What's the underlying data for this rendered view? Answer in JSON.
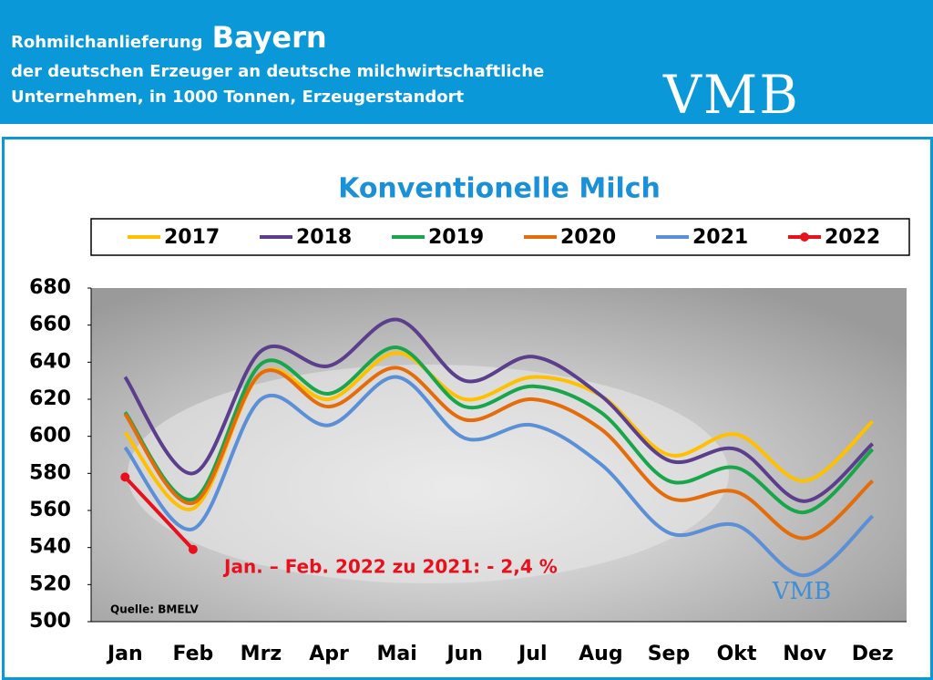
{
  "header": {
    "title_prefix": "Rohmilchanlieferung",
    "title_region": "Bayern",
    "subtitle_lines": [
      "der deutschen Erzeuger an deutsche milchwirtschaftliche",
      "Unternehmen, in 1000 Tonnen, Erzeugerstandort"
    ],
    "logo": "VMB"
  },
  "chart_data": {
    "type": "line",
    "title": "Konventionelle Milch",
    "categories": [
      "Jan",
      "Feb",
      "Mrz",
      "Apr",
      "Mai",
      "Jun",
      "Jul",
      "Aug",
      "Sep",
      "Okt",
      "Nov",
      "Dez"
    ],
    "series": [
      {
        "name": "2017",
        "color": "#ffc000",
        "values": [
          602,
          561,
          634,
          620,
          645,
          620,
          632,
          622,
          590,
          601,
          576,
          608
        ]
      },
      {
        "name": "2018",
        "color": "#5c3f8c",
        "values": [
          632,
          580,
          646,
          638,
          663,
          630,
          643,
          622,
          587,
          593,
          565,
          596
        ]
      },
      {
        "name": "2019",
        "color": "#19a64a",
        "values": [
          613,
          566,
          639,
          623,
          648,
          616,
          627,
          613,
          576,
          583,
          559,
          593
        ]
      },
      {
        "name": "2020",
        "color": "#e46c0a",
        "values": [
          612,
          564,
          634,
          616,
          637,
          609,
          620,
          604,
          567,
          570,
          545,
          576
        ]
      },
      {
        "name": "2021",
        "color": "#5b8fd6",
        "values": [
          594,
          550,
          620,
          606,
          632,
          599,
          606,
          585,
          548,
          552,
          525,
          557
        ]
      },
      {
        "name": "2022",
        "color": "#e8101c",
        "marker": "circle",
        "values": [
          578,
          539,
          null,
          null,
          null,
          null,
          null,
          null,
          null,
          null,
          null,
          null
        ]
      }
    ],
    "ylim": [
      500,
      680
    ],
    "yticks": [
      500,
      520,
      540,
      560,
      580,
      600,
      620,
      640,
      660,
      680
    ],
    "annotation": "Jan. – Feb. 2022 zu 2021: - 2,4 %",
    "source": "Quelle: BMELV"
  }
}
